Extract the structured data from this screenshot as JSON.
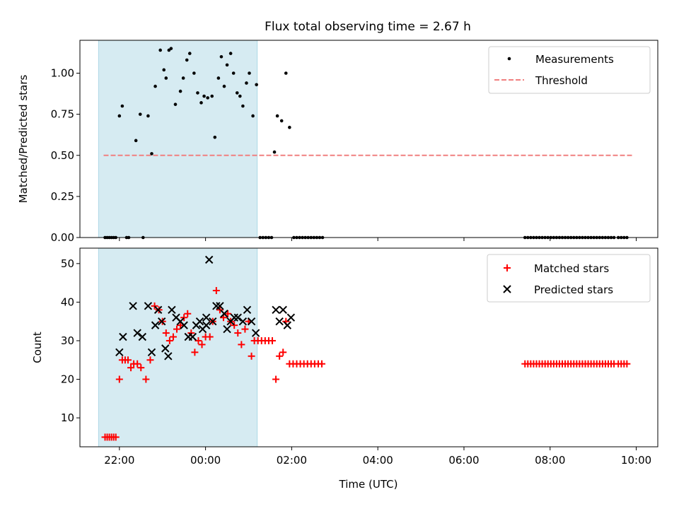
{
  "title": "Flux total observing time = 2.67 h",
  "shade_color": "#add8e6",
  "x_ticks": [
    "22:00",
    "00:00",
    "02:00",
    "04:00",
    "06:00",
    "08:00",
    "10:00"
  ],
  "chart_data": [
    {
      "type": "scatter",
      "ylabel": "Matched/Predicted stars",
      "xlabel": "",
      "xlim": [
        "21:05",
        "10:30"
      ],
      "ylim": [
        0,
        1.2
      ],
      "y_ticks": [
        "0.00",
        "0.25",
        "0.50",
        "0.75",
        "1.00"
      ],
      "shaded_interval": [
        "21:31",
        "01:12"
      ],
      "legend": {
        "position": "top-right"
      },
      "series": [
        {
          "name": "Measurements",
          "marker": "dot",
          "color": "#000000",
          "points": [
            [
              "21:40",
              0
            ],
            [
              "21:43",
              0
            ],
            [
              "21:46",
              0
            ],
            [
              "21:49",
              0
            ],
            [
              "21:52",
              0
            ],
            [
              "21:55",
              0
            ],
            [
              "22:00",
              0.74
            ],
            [
              "22:04",
              0.8
            ],
            [
              "22:10",
              0
            ],
            [
              "22:13",
              0
            ],
            [
              "22:23",
              0.59
            ],
            [
              "22:29",
              0.75
            ],
            [
              "22:33",
              0
            ],
            [
              "22:40",
              0.74
            ],
            [
              "22:45",
              0.51
            ],
            [
              "22:50",
              0.92
            ],
            [
              "22:57",
              1.14
            ],
            [
              "23:02",
              1.02
            ],
            [
              "23:05",
              0.97
            ],
            [
              "23:09",
              1.14
            ],
            [
              "23:12",
              1.15
            ],
            [
              "23:18",
              0.81
            ],
            [
              "23:25",
              0.89
            ],
            [
              "23:29",
              0.97
            ],
            [
              "23:34",
              1.08
            ],
            [
              "23:38",
              1.12
            ],
            [
              "23:44",
              1.0
            ],
            [
              "23:49",
              0.88
            ],
            [
              "23:54",
              0.82
            ],
            [
              "23:58",
              0.86
            ],
            [
              "00:03",
              0.85
            ],
            [
              "00:09",
              0.86
            ],
            [
              "00:13",
              0.61
            ],
            [
              "00:18",
              0.97
            ],
            [
              "00:22",
              1.1
            ],
            [
              "00:26",
              0.92
            ],
            [
              "00:30",
              1.05
            ],
            [
              "00:35",
              1.12
            ],
            [
              "00:39",
              1.0
            ],
            [
              "00:44",
              0.88
            ],
            [
              "00:48",
              0.86
            ],
            [
              "00:52",
              0.8
            ],
            [
              "00:57",
              0.94
            ],
            [
              "01:01",
              1.0
            ],
            [
              "01:06",
              0.74
            ],
            [
              "01:11",
              0.93
            ],
            [
              "01:16",
              0
            ],
            [
              "01:20",
              0
            ],
            [
              "01:24",
              0
            ],
            [
              "01:28",
              0
            ],
            [
              "01:32",
              0
            ],
            [
              "01:36",
              0.52
            ],
            [
              "01:40",
              0.74
            ],
            [
              "01:46",
              0.71
            ],
            [
              "01:52",
              1.0
            ],
            [
              "01:57",
              0.67
            ],
            [
              "02:03",
              0
            ],
            [
              "02:07",
              0
            ],
            [
              "02:11",
              0
            ],
            [
              "02:15",
              0
            ],
            [
              "02:19",
              0
            ],
            [
              "02:23",
              0
            ],
            [
              "02:27",
              0
            ],
            [
              "02:31",
              0
            ],
            [
              "02:35",
              0
            ],
            [
              "02:39",
              0
            ],
            [
              "02:43",
              0
            ],
            [
              "07:25",
              0
            ],
            [
              "07:29",
              0
            ],
            [
              "07:33",
              0
            ],
            [
              "07:37",
              0
            ],
            [
              "07:41",
              0
            ],
            [
              "07:45",
              0
            ],
            [
              "07:49",
              0
            ],
            [
              "07:53",
              0
            ],
            [
              "07:57",
              0
            ],
            [
              "08:01",
              0
            ],
            [
              "08:05",
              0
            ],
            [
              "08:09",
              0
            ],
            [
              "08:13",
              0
            ],
            [
              "08:17",
              0
            ],
            [
              "08:21",
              0
            ],
            [
              "08:25",
              0
            ],
            [
              "08:29",
              0
            ],
            [
              "08:33",
              0
            ],
            [
              "08:37",
              0
            ],
            [
              "08:41",
              0
            ],
            [
              "08:45",
              0
            ],
            [
              "08:49",
              0
            ],
            [
              "08:53",
              0
            ],
            [
              "08:57",
              0
            ],
            [
              "09:01",
              0
            ],
            [
              "09:05",
              0
            ],
            [
              "09:09",
              0
            ],
            [
              "09:13",
              0
            ],
            [
              "09:17",
              0
            ],
            [
              "09:21",
              0
            ],
            [
              "09:25",
              0
            ],
            [
              "09:29",
              0
            ],
            [
              "09:35",
              0
            ],
            [
              "09:39",
              0
            ],
            [
              "09:43",
              0
            ],
            [
              "09:47",
              0
            ]
          ]
        },
        {
          "name": "Threshold",
          "marker": "dashed-line",
          "color": "#f08080",
          "points": [
            [
              "21:38",
              0.5
            ],
            [
              "09:55",
              0.5
            ]
          ]
        }
      ]
    },
    {
      "type": "scatter",
      "ylabel": "Count",
      "xlabel": "Time (UTC)",
      "xlim": [
        "21:05",
        "10:30"
      ],
      "ylim": [
        2.5,
        54
      ],
      "y_ticks": [
        "10",
        "20",
        "30",
        "40",
        "50"
      ],
      "shaded_interval": [
        "21:31",
        "01:12"
      ],
      "legend": {
        "position": "top-right"
      },
      "series": [
        {
          "name": "Matched stars",
          "marker": "plus",
          "color": "#ff0000",
          "points": [
            [
              "21:40",
              5
            ],
            [
              "21:43",
              5
            ],
            [
              "21:46",
              5
            ],
            [
              "21:49",
              5
            ],
            [
              "21:52",
              5
            ],
            [
              "21:55",
              5
            ],
            [
              "22:00",
              20
            ],
            [
              "22:04",
              25
            ],
            [
              "22:08",
              25
            ],
            [
              "22:12",
              25
            ],
            [
              "22:16",
              23
            ],
            [
              "22:20",
              24
            ],
            [
              "22:25",
              24
            ],
            [
              "22:30",
              23
            ],
            [
              "22:37",
              20
            ],
            [
              "22:43",
              25
            ],
            [
              "22:49",
              39
            ],
            [
              "22:55",
              38
            ],
            [
              "23:00",
              35
            ],
            [
              "23:05",
              32
            ],
            [
              "23:10",
              30
            ],
            [
              "23:15",
              31
            ],
            [
              "23:20",
              33
            ],
            [
              "23:25",
              34
            ],
            [
              "23:30",
              36
            ],
            [
              "23:35",
              37
            ],
            [
              "23:40",
              32
            ],
            [
              "23:45",
              27
            ],
            [
              "23:50",
              30
            ],
            [
              "23:55",
              29
            ],
            [
              "00:00",
              31
            ],
            [
              "00:06",
              31
            ],
            [
              "00:10",
              35
            ],
            [
              "00:15",
              43
            ],
            [
              "00:20",
              38
            ],
            [
              "00:25",
              36
            ],
            [
              "00:31",
              37
            ],
            [
              "00:35",
              35
            ],
            [
              "00:40",
              34
            ],
            [
              "00:45",
              32
            ],
            [
              "00:50",
              29
            ],
            [
              "00:55",
              33
            ],
            [
              "01:00",
              35
            ],
            [
              "01:04",
              26
            ],
            [
              "01:08",
              30
            ],
            [
              "01:13",
              30
            ],
            [
              "01:18",
              30
            ],
            [
              "01:23",
              30
            ],
            [
              "01:28",
              30
            ],
            [
              "01:33",
              30
            ],
            [
              "01:38",
              20
            ],
            [
              "01:43",
              26
            ],
            [
              "01:48",
              27
            ],
            [
              "01:52",
              35
            ],
            [
              "01:57",
              24
            ],
            [
              "02:02",
              24
            ],
            [
              "02:07",
              24
            ],
            [
              "02:12",
              24
            ],
            [
              "02:17",
              24
            ],
            [
              "02:22",
              24
            ],
            [
              "02:27",
              24
            ],
            [
              "02:32",
              24
            ],
            [
              "02:37",
              24
            ],
            [
              "02:42",
              24
            ],
            [
              "07:25",
              24
            ],
            [
              "07:29",
              24
            ],
            [
              "07:33",
              24
            ],
            [
              "07:37",
              24
            ],
            [
              "07:41",
              24
            ],
            [
              "07:45",
              24
            ],
            [
              "07:49",
              24
            ],
            [
              "07:53",
              24
            ],
            [
              "07:57",
              24
            ],
            [
              "08:01",
              24
            ],
            [
              "08:05",
              24
            ],
            [
              "08:09",
              24
            ],
            [
              "08:13",
              24
            ],
            [
              "08:17",
              24
            ],
            [
              "08:21",
              24
            ],
            [
              "08:25",
              24
            ],
            [
              "08:29",
              24
            ],
            [
              "08:33",
              24
            ],
            [
              "08:37",
              24
            ],
            [
              "08:41",
              24
            ],
            [
              "08:45",
              24
            ],
            [
              "08:49",
              24
            ],
            [
              "08:53",
              24
            ],
            [
              "08:57",
              24
            ],
            [
              "09:01",
              24
            ],
            [
              "09:05",
              24
            ],
            [
              "09:09",
              24
            ],
            [
              "09:13",
              24
            ],
            [
              "09:17",
              24
            ],
            [
              "09:21",
              24
            ],
            [
              "09:25",
              24
            ],
            [
              "09:29",
              24
            ],
            [
              "09:35",
              24
            ],
            [
              "09:39",
              24
            ],
            [
              "09:43",
              24
            ],
            [
              "09:47",
              24
            ]
          ]
        },
        {
          "name": "Predicted stars",
          "marker": "x",
          "color": "#000000",
          "points": [
            [
              "22:00",
              27
            ],
            [
              "22:05",
              31
            ],
            [
              "22:19",
              39
            ],
            [
              "22:25",
              32
            ],
            [
              "22:32",
              31
            ],
            [
              "22:40",
              39
            ],
            [
              "22:45",
              27
            ],
            [
              "22:50",
              34
            ],
            [
              "22:54",
              38
            ],
            [
              "22:59",
              35
            ],
            [
              "23:04",
              28
            ],
            [
              "23:08",
              26
            ],
            [
              "23:13",
              38
            ],
            [
              "23:19",
              36
            ],
            [
              "23:25",
              35
            ],
            [
              "23:30",
              34
            ],
            [
              "23:36",
              31
            ],
            [
              "23:42",
              31
            ],
            [
              "23:47",
              34
            ],
            [
              "23:52",
              35
            ],
            [
              "23:56",
              33
            ],
            [
              "24:01",
              34
            ],
            [
              "00:01",
              36
            ],
            [
              "00:05",
              51
            ],
            [
              "00:10",
              35
            ],
            [
              "00:15",
              39
            ],
            [
              "00:20",
              39
            ],
            [
              "00:26",
              37
            ],
            [
              "00:30",
              33
            ],
            [
              "00:35",
              35
            ],
            [
              "00:40",
              36
            ],
            [
              "00:45",
              36
            ],
            [
              "00:52",
              35
            ],
            [
              "00:58",
              38
            ],
            [
              "01:04",
              35
            ],
            [
              "01:10",
              32
            ],
            [
              "01:38",
              38
            ],
            [
              "01:43",
              35
            ],
            [
              "01:48",
              38
            ],
            [
              "01:54",
              34
            ],
            [
              "01:59",
              36
            ]
          ]
        }
      ]
    }
  ]
}
